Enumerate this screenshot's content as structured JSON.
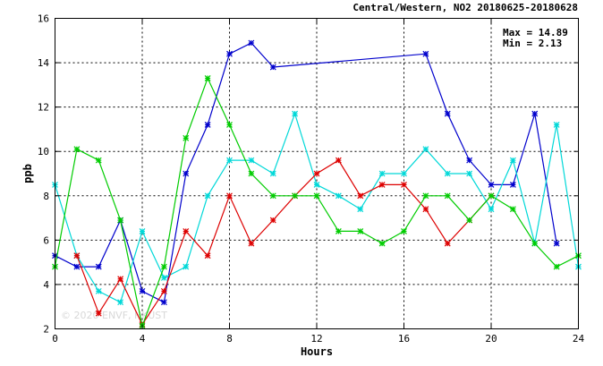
{
  "chart_data": {
    "type": "line",
    "title": "Central/Western, NO2 20180625-20180628",
    "xlabel": "Hours",
    "ylabel": "ppb",
    "xlim": [
      0,
      24
    ],
    "ylim": [
      2,
      16
    ],
    "xticks": [
      0,
      4,
      8,
      12,
      16,
      20,
      24
    ],
    "yticks": [
      2,
      4,
      6,
      8,
      10,
      12,
      14,
      16
    ],
    "grid": true,
    "stats": {
      "max_label": "Max = 14.89",
      "min_label": "Min =  2.13"
    },
    "watermark": "© 2020 ENVF, HKUST",
    "series": [
      {
        "color": "#0000cc",
        "points": [
          [
            0,
            5.3
          ],
          [
            1,
            4.8
          ],
          [
            2,
            4.8
          ],
          [
            3,
            6.9
          ],
          [
            4,
            3.7
          ],
          [
            5,
            3.2
          ],
          [
            6,
            9.0
          ],
          [
            7,
            11.2
          ],
          [
            8,
            14.4
          ],
          [
            9,
            14.89
          ],
          [
            10,
            13.8
          ],
          [
            17,
            14.4
          ],
          [
            18,
            11.7
          ],
          [
            19,
            9.6
          ],
          [
            20,
            8.5
          ],
          [
            21,
            8.5
          ],
          [
            22,
            11.7
          ],
          [
            23,
            5.85
          ]
        ]
      },
      {
        "color": "#00d8d8",
        "points": [
          [
            0,
            8.5
          ],
          [
            1,
            5.3
          ],
          [
            2,
            3.7
          ],
          [
            3,
            3.2
          ],
          [
            4,
            6.4
          ],
          [
            5,
            4.3
          ],
          [
            6,
            4.8
          ],
          [
            7,
            8.0
          ],
          [
            8,
            9.6
          ],
          [
            9,
            9.6
          ],
          [
            10,
            9.0
          ],
          [
            11,
            11.7
          ],
          [
            12,
            8.5
          ],
          [
            13,
            8.0
          ],
          [
            14,
            7.4
          ],
          [
            15,
            9.0
          ],
          [
            16,
            9.0
          ],
          [
            17,
            10.1
          ],
          [
            18,
            9.0
          ],
          [
            19,
            9.0
          ],
          [
            20,
            7.4
          ],
          [
            21,
            9.6
          ],
          [
            22,
            5.85
          ],
          [
            23,
            11.2
          ],
          [
            24,
            4.8
          ]
        ]
      },
      {
        "color": "#dd0000",
        "points": [
          [
            1,
            5.3
          ],
          [
            2,
            2.7
          ],
          [
            3,
            4.25
          ],
          [
            4,
            2.2
          ],
          [
            5,
            3.7
          ],
          [
            6,
            6.4
          ],
          [
            7,
            5.3
          ],
          [
            8,
            8.0
          ],
          [
            9,
            5.85
          ],
          [
            10,
            6.9
          ],
          [
            11,
            8.0
          ],
          [
            12,
            9.0
          ],
          [
            13,
            9.6
          ],
          [
            14,
            8.0
          ],
          [
            15,
            8.5
          ],
          [
            16,
            8.5
          ],
          [
            17,
            7.4
          ],
          [
            18,
            5.85
          ],
          [
            19,
            6.9
          ],
          [
            20,
            8.0
          ]
        ]
      },
      {
        "color": "#00cc00",
        "points": [
          [
            0,
            4.8
          ],
          [
            1,
            10.1
          ],
          [
            2,
            9.6
          ],
          [
            3,
            6.9
          ],
          [
            4,
            2.13
          ],
          [
            5,
            4.8
          ],
          [
            6,
            10.6
          ],
          [
            7,
            13.3
          ],
          [
            8,
            11.2
          ],
          [
            9,
            9.0
          ],
          [
            10,
            8.0
          ],
          [
            11,
            8.0
          ],
          [
            12,
            8.0
          ],
          [
            13,
            6.4
          ],
          [
            14,
            6.4
          ],
          [
            15,
            5.85
          ],
          [
            16,
            6.4
          ],
          [
            17,
            8.0
          ],
          [
            18,
            8.0
          ],
          [
            19,
            6.9
          ],
          [
            20,
            8.0
          ],
          [
            21,
            7.4
          ],
          [
            22,
            5.85
          ],
          [
            23,
            4.8
          ],
          [
            24,
            5.3
          ]
        ]
      }
    ]
  }
}
